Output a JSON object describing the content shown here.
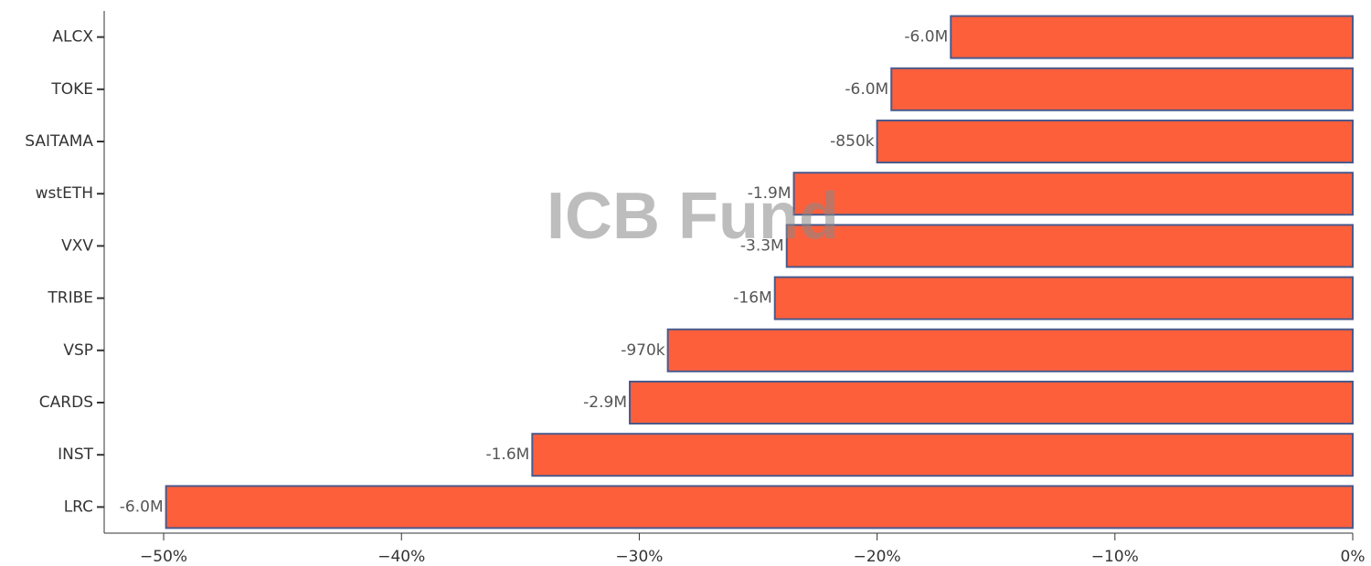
{
  "chart_data": {
    "type": "barh",
    "watermark": "ICB Fund",
    "categories": [
      "ALCX",
      "TOKE",
      "SAITAMA",
      "wstETH",
      "VXV",
      "TRIBE",
      "VSP",
      "CARDS",
      "INST",
      "LRC"
    ],
    "values": [
      -16.9,
      -19.4,
      -20.0,
      -23.5,
      -23.8,
      -24.3,
      -28.8,
      -30.4,
      -34.5,
      -49.9
    ],
    "bar_texts": [
      "-6.0M",
      "-6.0M",
      "-850k",
      "-1.9M",
      "-3.3M",
      "-16M",
      "-970k",
      "-2.9M",
      "-1.6M",
      "-6.0M"
    ],
    "color": "#fe5f3b",
    "edge_color": "#4a5a8c",
    "xlim": [
      -52.5,
      0
    ],
    "xticks": [
      {
        "value": -50,
        "label": "−50%"
      },
      {
        "value": -40,
        "label": "−40%"
      },
      {
        "value": -30,
        "label": "−30%"
      },
      {
        "value": -20,
        "label": "−20%"
      },
      {
        "value": -10,
        "label": "−10%"
      },
      {
        "value": 0,
        "label": "0%"
      }
    ]
  }
}
